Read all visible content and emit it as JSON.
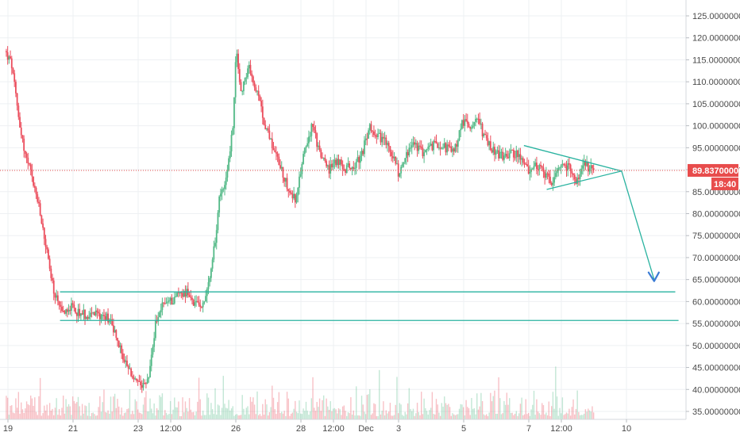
{
  "colors": {
    "up": "#53b987",
    "down": "#eb4d5c",
    "grid": "#eef0f3",
    "axis_text": "#4a4a4a",
    "last_price": "#e84c4c",
    "drawing": "#2ab3a0",
    "arrow": "#3a7bd5"
  },
  "price_axis": {
    "labels": [
      "125.00000000",
      "120.00000000",
      "115.00000000",
      "110.00000000",
      "105.00000000",
      "100.00000000",
      "95.00000000",
      "90.00000000",
      "85.00000000",
      "80.00000000",
      "75.00000000",
      "70.00000000",
      "65.00000000",
      "60.00000000",
      "55.00000000",
      "50.00000000",
      "45.00000000",
      "40.00000000",
      "35.00000000"
    ],
    "last_price": "89.83700000",
    "countdown": "18:40"
  },
  "time_axis": {
    "labels": [
      "19",
      "21",
      "23",
      "12:00",
      "26",
      "28",
      "12:00",
      "Dec",
      "3",
      "5",
      "7",
      "12:00",
      "10"
    ]
  },
  "chart_data": {
    "type": "candlestick",
    "ylim": [
      34,
      126
    ],
    "xlim": [
      18.9,
      40.3
    ],
    "last_price": 89.837,
    "price_path": [
      [
        18.95,
        117
      ],
      [
        19.15,
        114
      ],
      [
        19.35,
        103
      ],
      [
        19.55,
        94
      ],
      [
        19.75,
        89
      ],
      [
        19.95,
        83
      ],
      [
        20.2,
        73
      ],
      [
        20.45,
        62
      ],
      [
        20.7,
        57
      ],
      [
        20.9,
        59
      ],
      [
        21.1,
        58
      ],
      [
        21.4,
        57
      ],
      [
        21.7,
        57
      ],
      [
        21.95,
        57
      ],
      [
        22.2,
        56
      ],
      [
        22.45,
        50
      ],
      [
        22.7,
        45
      ],
      [
        22.95,
        42
      ],
      [
        23.15,
        40
      ],
      [
        23.35,
        42
      ],
      [
        23.6,
        56
      ],
      [
        23.85,
        60
      ],
      [
        24.05,
        60
      ],
      [
        24.3,
        62
      ],
      [
        24.55,
        62
      ],
      [
        24.8,
        59
      ],
      [
        25.05,
        60
      ],
      [
        25.3,
        67
      ],
      [
        25.55,
        84
      ],
      [
        25.8,
        90
      ],
      [
        25.95,
        100
      ],
      [
        26.05,
        117
      ],
      [
        26.2,
        108
      ],
      [
        26.45,
        113
      ],
      [
        26.7,
        107
      ],
      [
        26.95,
        100
      ],
      [
        27.2,
        95
      ],
      [
        27.45,
        90
      ],
      [
        27.7,
        85
      ],
      [
        27.9,
        83
      ],
      [
        28.15,
        95
      ],
      [
        28.4,
        100
      ],
      [
        28.65,
        93
      ],
      [
        28.9,
        90
      ],
      [
        29.15,
        92
      ],
      [
        29.4,
        90
      ],
      [
        29.65,
        91
      ],
      [
        29.9,
        93
      ],
      [
        30.15,
        100
      ],
      [
        30.4,
        98
      ],
      [
        30.65,
        96
      ],
      [
        30.9,
        93
      ],
      [
        31.05,
        89
      ],
      [
        31.25,
        93
      ],
      [
        31.5,
        96
      ],
      [
        31.75,
        94
      ],
      [
        32.0,
        95
      ],
      [
        32.25,
        96
      ],
      [
        32.5,
        95
      ],
      [
        32.75,
        94
      ],
      [
        33.0,
        101
      ],
      [
        33.25,
        100
      ],
      [
        33.5,
        101
      ],
      [
        33.75,
        96
      ],
      [
        34.0,
        94
      ],
      [
        34.25,
        93
      ],
      [
        34.5,
        94
      ],
      [
        34.75,
        93
      ],
      [
        35.0,
        90
      ],
      [
        35.25,
        91
      ],
      [
        35.5,
        89
      ],
      [
        35.75,
        87
      ],
      [
        36.0,
        90
      ],
      [
        36.25,
        91
      ],
      [
        36.5,
        87
      ],
      [
        36.75,
        91
      ],
      [
        37.0,
        90
      ]
    ],
    "annotations": {
      "triangle_upper": [
        [
          34.85,
          95.5
        ],
        [
          37.85,
          89.7
        ]
      ],
      "triangle_lower": [
        [
          35.55,
          85.5
        ],
        [
          37.85,
          89.7
        ]
      ],
      "projection": [
        [
          37.85,
          89.7
        ],
        [
          38.85,
          65
        ]
      ],
      "support_upper": [
        [
          20.6,
          62.2
        ],
        [
          39.5,
          62.2
        ]
      ],
      "support_lower": [
        [
          20.6,
          55.7
        ],
        [
          39.6,
          55.7
        ]
      ]
    }
  }
}
